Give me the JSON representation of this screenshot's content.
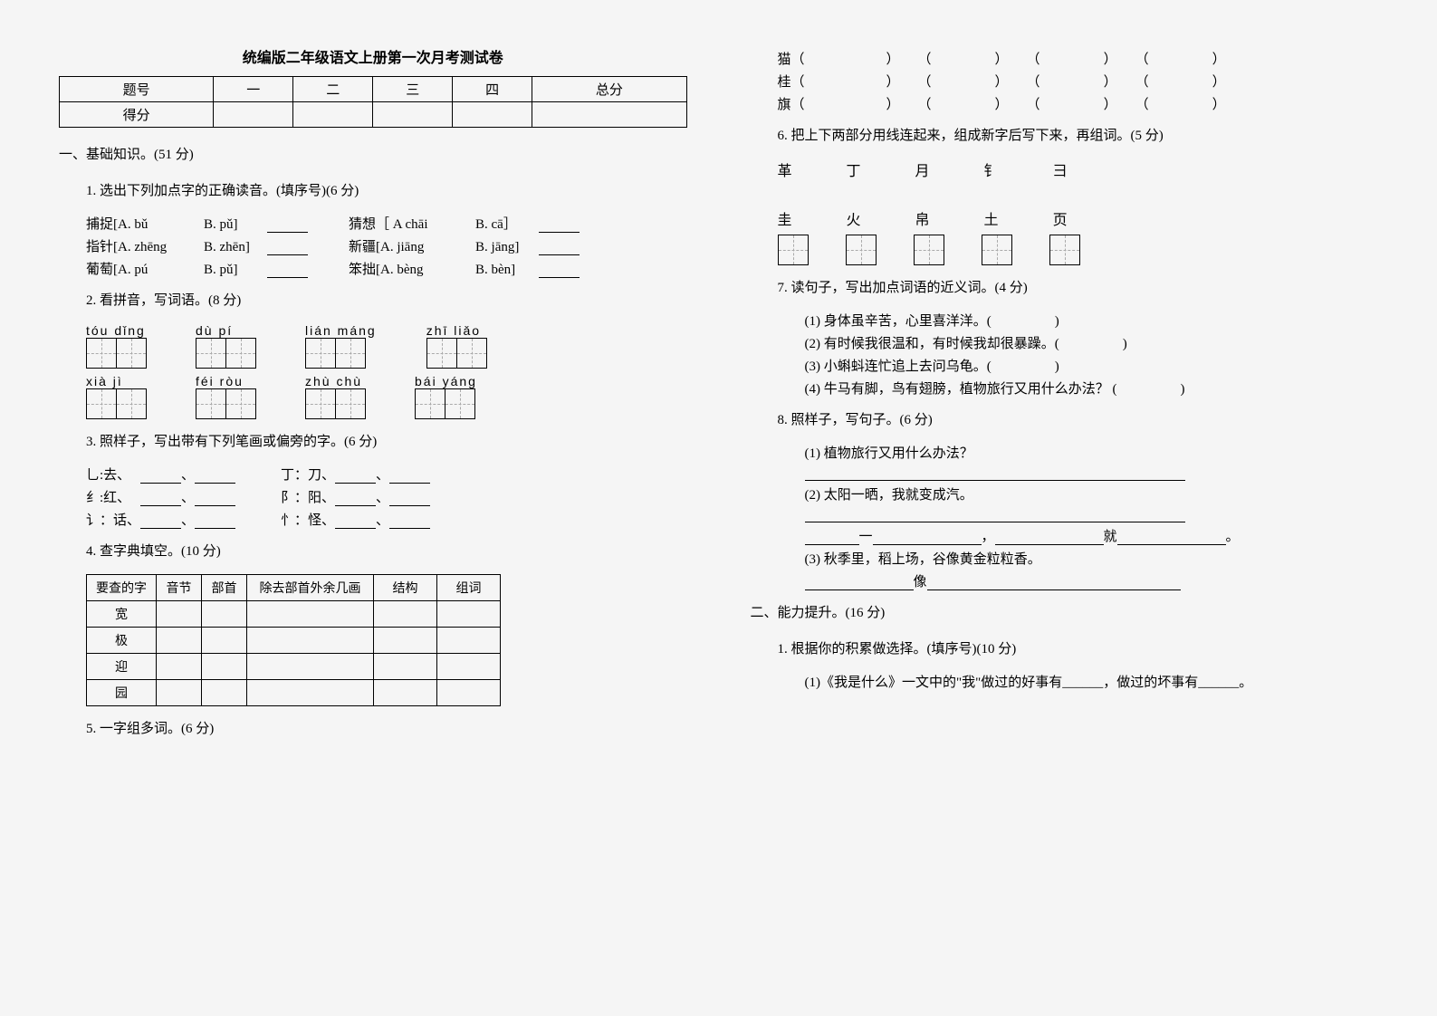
{
  "title": "统编版二年级语文上册第一次月考测试卷",
  "score_table": {
    "headers": [
      "题号",
      "一",
      "二",
      "三",
      "四",
      "总分"
    ],
    "row": "得分"
  },
  "sections": {
    "s1": "一、基础知识。(51 分)",
    "q1": "1. 选出下列加点字的正确读音。(填序号)(6 分)",
    "q1_items": [
      [
        "捕捉[A. bǔ",
        "B. pǔ]",
        "猜想［ A chāi",
        "B. cā］"
      ],
      [
        "指针[A. zhēng",
        "B. zhēn]",
        "新疆[A. jiāng",
        "B. jāng]"
      ],
      [
        "葡萄[A. pú",
        "B. pǔ]",
        "笨拙[A. bèng",
        "B. bèn]"
      ]
    ],
    "q2": "2. 看拼音，写词语。(8 分)",
    "q2_pinyin": [
      [
        "tóu dǐng",
        "dù  pí",
        "lián máng",
        "zhī  liǎo"
      ],
      [
        "xià  jì",
        "féi  ròu",
        "zhù  chù",
        "bái  yáng"
      ]
    ],
    "q3": "3. 照样子，写出带有下列笔画或偏旁的字。(6 分)",
    "q3_items": [
      [
        "乚:去、",
        "丁：刀、"
      ],
      [
        "纟:红、",
        "阝：阳、"
      ],
      [
        "讠：话、",
        "忄：怪、"
      ]
    ],
    "q4": "4. 查字典填空。(10 分)",
    "q4_headers": [
      "要查的字",
      "音节",
      "部首",
      "除去部首外余几画",
      "结构",
      "组词"
    ],
    "q4_rows": [
      "宽",
      "极",
      "迎",
      "园"
    ],
    "q5": "5. 一字组多词。(6 分)",
    "q5_rows": [
      "猫",
      "桂",
      "旗"
    ],
    "q6": "6. 把上下两部分用线连起来，组成新字后写下来，再组词。(5 分)",
    "q6_top": [
      "革",
      "丁",
      "月",
      "钅",
      "彐"
    ],
    "q6_bot": [
      "圭",
      "火",
      "帛",
      "土",
      "页"
    ],
    "q7": "7. 读句子，写出加点词语的近义词。(4 分)",
    "q7_items": [
      "(1) 身体虽辛苦，心里喜洋洋。(",
      "(2) 有时候我很温和，有时候我却很暴躁。(",
      "(3) 小蝌蚪连忙追上去问乌龟。(",
      "(4) 牛马有脚，鸟有翅膀，植物旅行又用什么办法？ ("
    ],
    "q8": "8. 照样子，写句子。(6 分)",
    "q8_1": "(1) 植物旅行又用什么办法？",
    "q8_2": "(2) 太阳一晒，我就变成汽。",
    "q8_3": "(3) 秋季里，稻上场，谷像黄金粒粒香。",
    "s2": "二、能力提升。(16 分)",
    "s2_q1": "1. 根据你的积累做选择。(填序号)(10 分)",
    "s2_q1_1": "(1)《我是什么》一文中的\"我\"做过的好事有______，做过的坏事有______。"
  }
}
